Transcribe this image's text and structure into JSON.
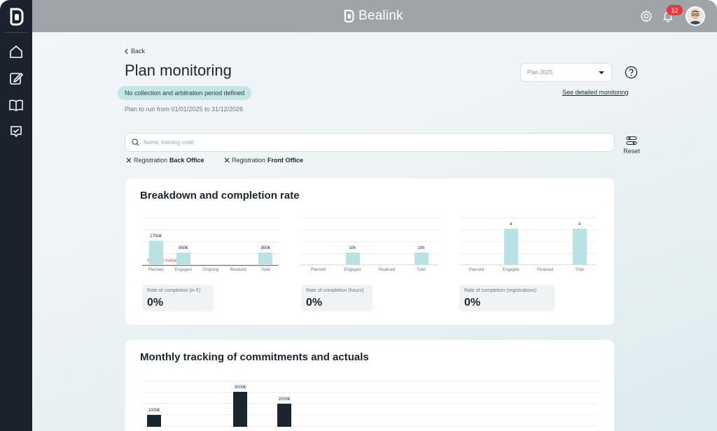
{
  "app": {
    "brand": "Bealink",
    "notifications": "12"
  },
  "sidebar": {
    "items": [
      "home-icon",
      "edit-icon",
      "book-icon",
      "checklist-icon"
    ]
  },
  "header": {
    "back_label": "Back",
    "title": "Plan monitoring",
    "period_notice": "No collection and arbitration period defined",
    "plan_run": "Plan to run from 01/01/2025 to 31/12/2026",
    "plan_select_value": "Plan 2025",
    "detail_link": "See detailed monitoring"
  },
  "search": {
    "placeholder": "Name, training code",
    "reset_label": "Reset"
  },
  "filters": [
    {
      "prefix": "Registration",
      "value": "Back Office"
    },
    {
      "prefix": "Registration",
      "value": "Front Office"
    }
  ],
  "breakdown": {
    "title": "Breakdown and completion rate",
    "budget_label": "Allocated budget",
    "charts": [
      {
        "categories": [
          "Planned",
          "Engaged",
          "Ongoing",
          "Realised",
          "Total"
        ],
        "values": [
          1700,
          850,
          0,
          0,
          850
        ],
        "labels": [
          "1700€",
          "850€",
          "",
          "",
          "850€"
        ],
        "rate_label": "Rate of completion (in €)",
        "rate_value": "0%"
      },
      {
        "categories": [
          "Planned",
          "Engaged",
          "Realised",
          "Total"
        ],
        "values": [
          0,
          10,
          0,
          10
        ],
        "labels": [
          "",
          "10h",
          "",
          "10h"
        ],
        "rate_label": "Rate of completion (hours)",
        "rate_value": "0%"
      },
      {
        "categories": [
          "Planned",
          "Engaged",
          "Realised",
          "Total"
        ],
        "values": [
          0,
          4,
          0,
          4
        ],
        "labels": [
          "",
          "4",
          "",
          "4"
        ],
        "rate_label": "Rate of completion (registrations)",
        "rate_value": "0%"
      }
    ]
  },
  "monthly": {
    "title": "Monthly tracking of commitments and actuals",
    "values": [
      1000,
      3000,
      2000
    ],
    "labels": [
      "1000€",
      "3000€",
      "2000€"
    ]
  },
  "chart_data": [
    {
      "type": "bar",
      "categories": [
        "Planned",
        "Engaged",
        "Ongoing",
        "Realised",
        "Total"
      ],
      "values": [
        1700,
        850,
        0,
        0,
        850
      ],
      "annotations": [
        "Allocated budget"
      ]
    },
    {
      "type": "bar",
      "categories": [
        "Planned",
        "Engaged",
        "Realised",
        "Total"
      ],
      "values": [
        0,
        10,
        0,
        10
      ]
    },
    {
      "type": "bar",
      "categories": [
        "Planned",
        "Engaged",
        "Realised",
        "Total"
      ],
      "values": [
        0,
        4,
        0,
        4
      ]
    },
    {
      "type": "bar",
      "values": [
        1000,
        3000,
        2000
      ]
    }
  ],
  "colors": {
    "sidebar": "#1a232d",
    "topbar": "#a0a3a8",
    "bar_light": "#b8e2e3",
    "bar_dark": "#1b2530",
    "budget_line": "#e84a42",
    "pill": "#c4e6e4",
    "badge": "#e23a3f"
  }
}
